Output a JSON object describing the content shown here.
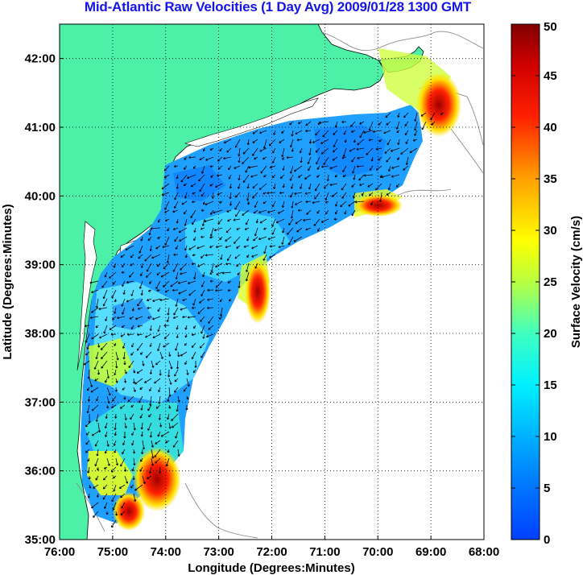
{
  "title": "Mid-Atlantic Raw Velocities (1 Day Avg) 2009/01/28 1300 GMT",
  "colors": {
    "title": "#1515e8",
    "land": "#4cf0a6",
    "ocean": "#ffffff",
    "grid": "#000000",
    "vectors": "#000000"
  },
  "map": {
    "xlabel": "Longitude (Degrees:Minutes)",
    "ylabel": "Latitude (Degrees:Minutes)",
    "lon_range": [
      -76,
      -68
    ],
    "lat_range": [
      35,
      42.5
    ],
    "x_ticks": [
      {
        "value": -76,
        "label": "76:00"
      },
      {
        "value": -75,
        "label": "75:00"
      },
      {
        "value": -74,
        "label": "74:00"
      },
      {
        "value": -73,
        "label": "73:00"
      },
      {
        "value": -72,
        "label": "72:00"
      },
      {
        "value": -71,
        "label": "71:00"
      },
      {
        "value": -70,
        "label": "70:00"
      },
      {
        "value": -69,
        "label": "69:00"
      },
      {
        "value": -68,
        "label": "68:00"
      }
    ],
    "y_ticks": [
      {
        "value": 35,
        "label": "35:00"
      },
      {
        "value": 36,
        "label": "36:00"
      },
      {
        "value": 37,
        "label": "37:00"
      },
      {
        "value": 38,
        "label": "38:00"
      },
      {
        "value": 39,
        "label": "39:00"
      },
      {
        "value": 40,
        "label": "40:00"
      },
      {
        "value": 41,
        "label": "41:00"
      },
      {
        "value": 42,
        "label": "42:00"
      }
    ],
    "grid": "dotted"
  },
  "colorbar": {
    "label": "Surface Velocity (cm/s)",
    "range": [
      0,
      50
    ],
    "ticks": [
      {
        "value": 0,
        "label": "0"
      },
      {
        "value": 5,
        "label": "5"
      },
      {
        "value": 10,
        "label": "10"
      },
      {
        "value": 15,
        "label": "15"
      },
      {
        "value": 20,
        "label": "20"
      },
      {
        "value": 25,
        "label": "25"
      },
      {
        "value": 30,
        "label": "30"
      },
      {
        "value": 35,
        "label": "35"
      },
      {
        "value": 40,
        "label": "40"
      },
      {
        "value": 45,
        "label": "45"
      },
      {
        "value": 50,
        "label": "50"
      }
    ],
    "colormap": "jet"
  }
}
